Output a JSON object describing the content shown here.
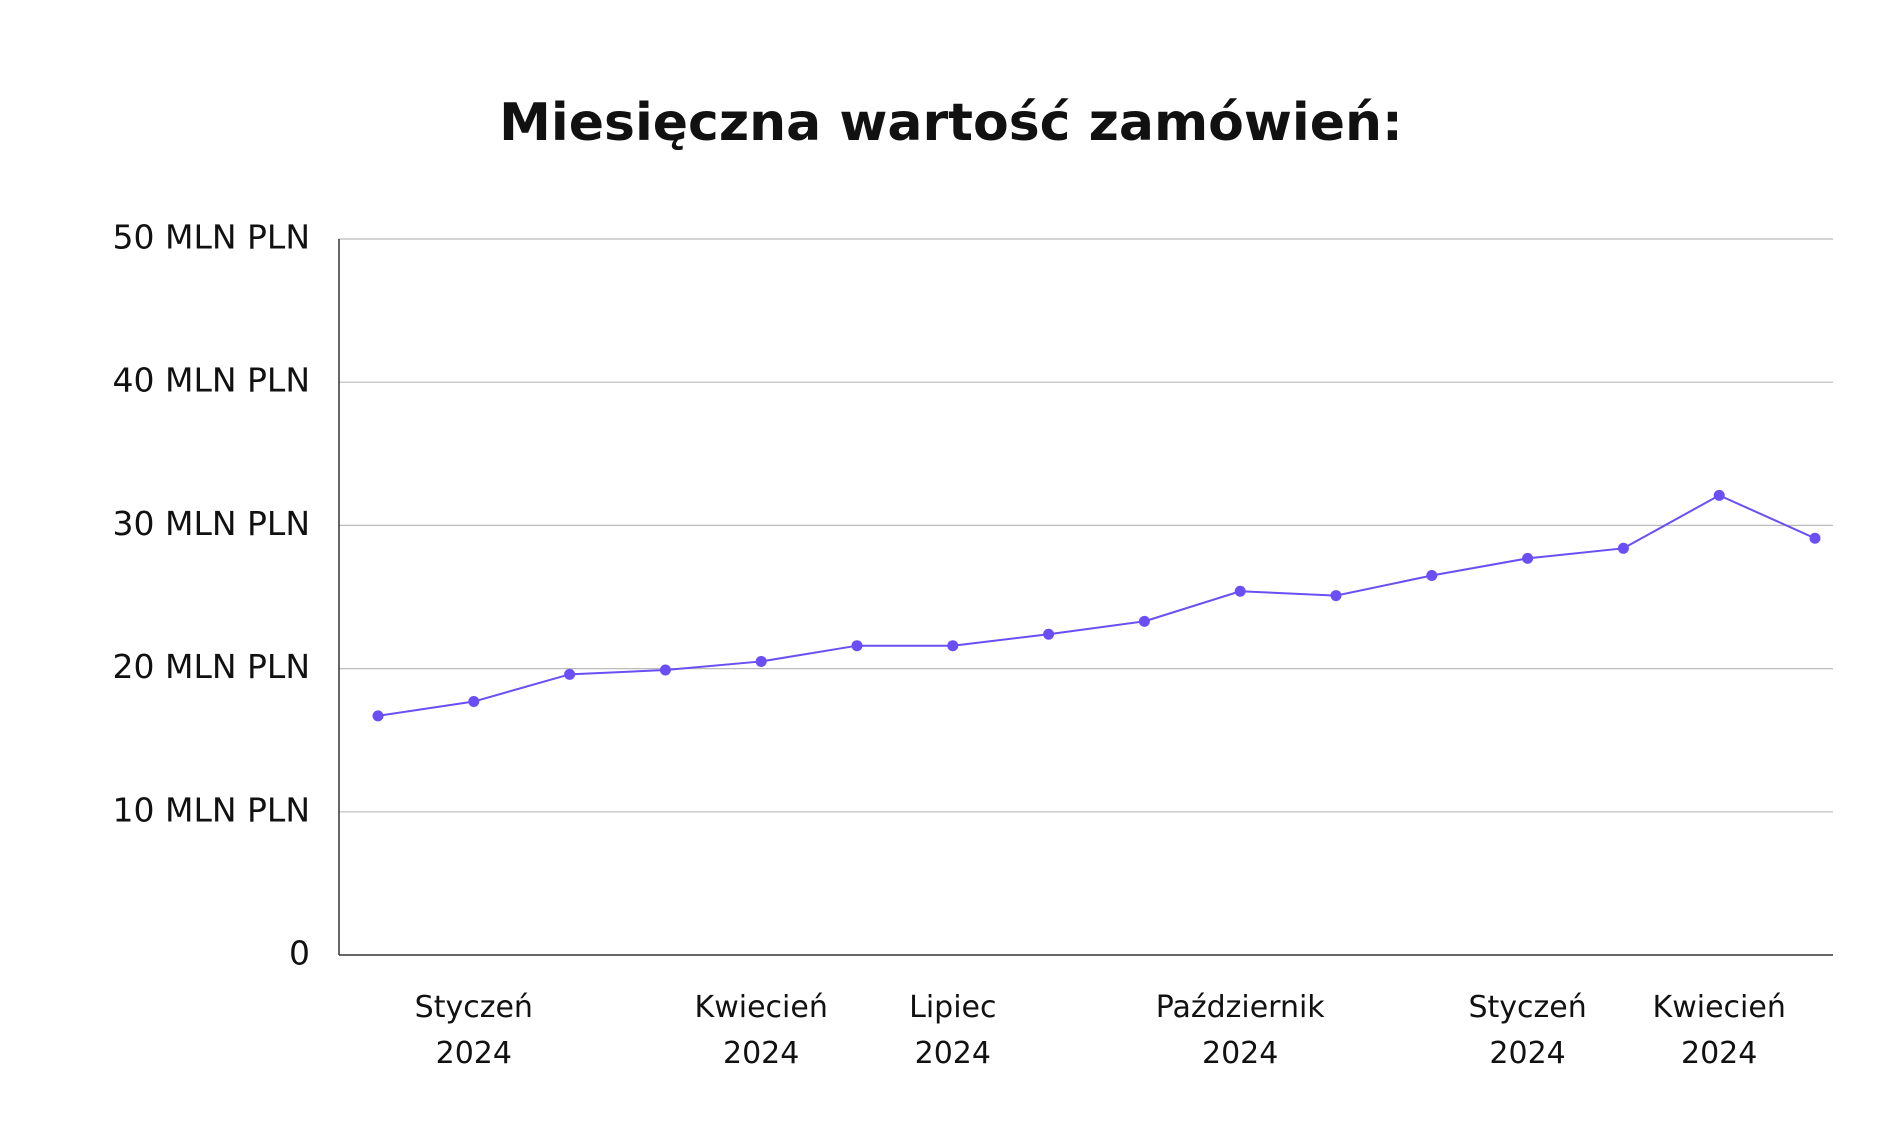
{
  "chart_data": {
    "type": "line",
    "title": "Miesięczna wartość zamówień:",
    "categories": [
      null,
      "Styczeń 2024",
      null,
      null,
      "Kwiecień 2024",
      null,
      "Lipiec 2024",
      null,
      null,
      "Październik 2024",
      null,
      null,
      "Styczeń 2024",
      null,
      "Kwiecień 2024",
      null
    ],
    "series": [
      {
        "name": "Wartość zamówień",
        "color": "#6b4ff5",
        "values": [
          16.7,
          17.7,
          19.6,
          19.9,
          20.5,
          21.6,
          21.6,
          22.4,
          23.3,
          25.4,
          25.1,
          26.5,
          27.7,
          28.4,
          32.1,
          29.1
        ]
      }
    ],
    "ylim": [
      0,
      50
    ],
    "yticks": [
      0,
      {
        "value": 10,
        "label": "10 MLN PLN"
      },
      {
        "value": 20,
        "label": "20 MLN PLN"
      },
      {
        "value": 30,
        "label": "30 MLN PLN"
      },
      {
        "value": 40,
        "label": "40 MLN PLN"
      },
      {
        "value": 50,
        "label": "50 MLN PLN"
      }
    ],
    "grid": true
  }
}
